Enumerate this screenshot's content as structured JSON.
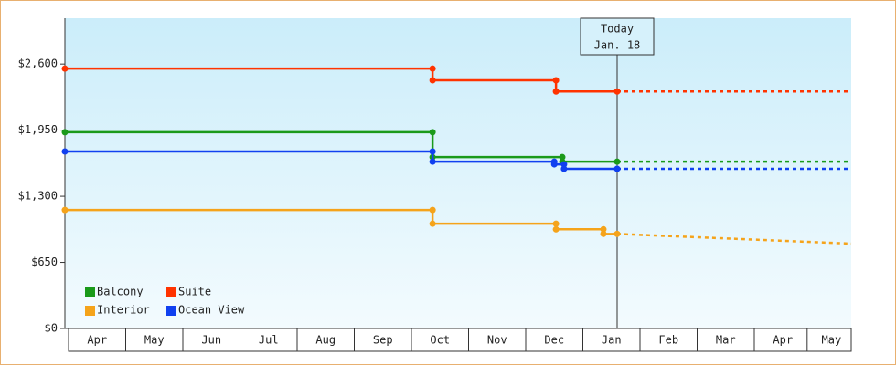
{
  "chart_data": {
    "type": "step-line",
    "xlim": [
      -0.064,
      13.696
    ],
    "xticks": [
      {
        "value": 0.5,
        "label": "Apr"
      },
      {
        "value": 1.5,
        "label": "May"
      },
      {
        "value": 2.5,
        "label": "Jun"
      },
      {
        "value": 3.5,
        "label": "Jul"
      },
      {
        "value": 4.5,
        "label": "Aug"
      },
      {
        "value": 5.5,
        "label": "Sep"
      },
      {
        "value": 6.5,
        "label": "Oct"
      },
      {
        "value": 7.5,
        "label": "Nov"
      },
      {
        "value": 8.5,
        "label": "Dec"
      },
      {
        "value": 9.5,
        "label": "Jan"
      },
      {
        "value": 10.5,
        "label": "Feb"
      },
      {
        "value": 11.5,
        "label": "Mar"
      },
      {
        "value": 12.5,
        "label": "Apr"
      },
      {
        "value": 13.35,
        "label": "May"
      }
    ],
    "ylim": [
      0,
      3050
    ],
    "yticks": [
      {
        "value": 0,
        "label": "$0"
      },
      {
        "value": 650,
        "label": "$650"
      },
      {
        "value": 1300,
        "label": "$1,300"
      },
      {
        "value": 1950,
        "label": "$1,950"
      },
      {
        "value": 2600,
        "label": "$2,600"
      }
    ],
    "annotation": {
      "x": 9.6,
      "lines": [
        "Today",
        "Jan. 18"
      ]
    },
    "series": [
      {
        "name": "Balcony",
        "color": "#1a9a1a",
        "x": [
          -0.064,
          6.37,
          6.37,
          8.64,
          8.64,
          9.6
        ],
        "values": [
          1930,
          1930,
          1685,
          1685,
          1640,
          1640
        ],
        "forecast": {
          "x": [
            9.6,
            13.696
          ],
          "values": [
            1640,
            1640
          ]
        }
      },
      {
        "name": "Suite",
        "color": "#ff3300",
        "x": [
          -0.064,
          6.37,
          6.37,
          8.53,
          8.53,
          9.6
        ],
        "values": [
          2555,
          2555,
          2440,
          2440,
          2330,
          2330
        ],
        "forecast": {
          "x": [
            9.6,
            13.696
          ],
          "values": [
            2330,
            2330
          ]
        }
      },
      {
        "name": "Interior",
        "color": "#f5a31a",
        "x": [
          -0.064,
          6.37,
          6.37,
          8.53,
          8.53,
          9.36,
          9.36,
          9.6
        ],
        "values": [
          1165,
          1165,
          1030,
          1030,
          975,
          975,
          930,
          930
        ],
        "forecast": {
          "x": [
            9.6,
            13.696
          ],
          "values": [
            930,
            834
          ]
        }
      },
      {
        "name": "Ocean View",
        "color": "#1040f0",
        "x": [
          -0.064,
          6.37,
          6.37,
          8.5,
          8.5,
          8.67,
          8.67,
          9.6
        ],
        "values": [
          1740,
          1740,
          1640,
          1640,
          1614,
          1614,
          1570,
          1570
        ],
        "forecast": {
          "x": [
            9.6,
            13.696
          ],
          "values": [
            1570,
            1570
          ]
        }
      }
    ]
  }
}
